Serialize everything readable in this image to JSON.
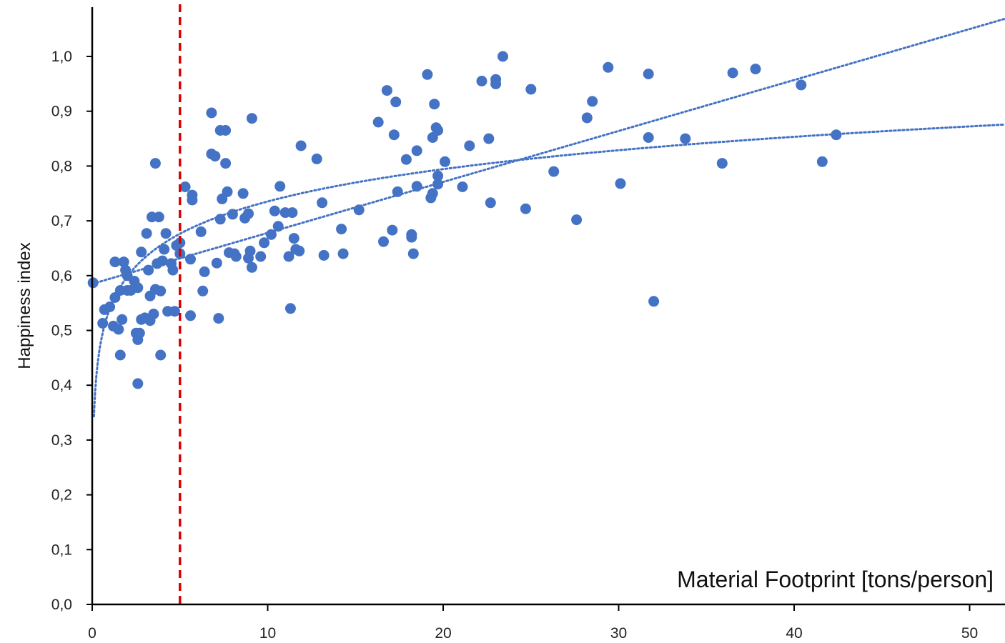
{
  "chart_data": {
    "type": "scatter",
    "title": "",
    "xlabel": "Material Footprint [tons/person]",
    "ylabel": "Happiness index",
    "xlim": [
      0,
      52
    ],
    "ylim": [
      0,
      1.05
    ],
    "x_ticks": [
      0,
      10,
      20,
      30,
      40,
      50
    ],
    "x_tick_labels": [
      "0",
      "10",
      "20",
      "30",
      "40",
      "50"
    ],
    "y_ticks": [
      0,
      0.1,
      0.2,
      0.3,
      0.4,
      0.5,
      0.6,
      0.7,
      0.8,
      0.9,
      1.0
    ],
    "y_tick_labels": [
      "0,0",
      "0,1",
      "0,2",
      "0,3",
      "0,4",
      "0,5",
      "0,6",
      "0,7",
      "0,8",
      "0,9",
      "1,0"
    ],
    "grid": false,
    "colors": {
      "points": "#4472c4",
      "trend": "#4472c4",
      "threshold": "#e00000",
      "axes": "#000000"
    },
    "threshold_line": {
      "x": 5,
      "style": "dashed"
    },
    "trendlines": [
      {
        "type": "linear",
        "style": "dotted",
        "slope": 0.0093,
        "intercept": 0.585
      },
      {
        "type": "logarithmic",
        "style": "dotted",
        "a": 0.0851,
        "b": 0.5394,
        "x_start": 0.1
      }
    ],
    "series": [
      {
        "points": [
          [
            0.05,
            0.587
          ],
          [
            0.7,
            0.538
          ],
          [
            0.6,
            0.513
          ],
          [
            1.0,
            0.543
          ],
          [
            1.2,
            0.508
          ],
          [
            1.3,
            0.625
          ],
          [
            1.3,
            0.56
          ],
          [
            1.5,
            0.502
          ],
          [
            1.6,
            0.573
          ],
          [
            1.7,
            0.52
          ],
          [
            1.6,
            0.455
          ],
          [
            1.8,
            0.625
          ],
          [
            1.9,
            0.61
          ],
          [
            2.0,
            0.6
          ],
          [
            2.0,
            0.573
          ],
          [
            2.2,
            0.573
          ],
          [
            2.4,
            0.59
          ],
          [
            2.5,
            0.495
          ],
          [
            2.6,
            0.578
          ],
          [
            2.6,
            0.483
          ],
          [
            2.6,
            0.403
          ],
          [
            2.7,
            0.495
          ],
          [
            2.8,
            0.643
          ],
          [
            2.8,
            0.52
          ],
          [
            3.0,
            0.523
          ],
          [
            3.1,
            0.677
          ],
          [
            3.2,
            0.61
          ],
          [
            3.3,
            0.518
          ],
          [
            3.3,
            0.563
          ],
          [
            3.4,
            0.707
          ],
          [
            3.5,
            0.53
          ],
          [
            3.6,
            0.575
          ],
          [
            3.6,
            0.805
          ],
          [
            3.7,
            0.622
          ],
          [
            3.8,
            0.707
          ],
          [
            3.9,
            0.572
          ],
          [
            3.9,
            0.455
          ],
          [
            4.0,
            0.627
          ],
          [
            4.1,
            0.648
          ],
          [
            4.2,
            0.677
          ],
          [
            4.3,
            0.535
          ],
          [
            4.6,
            0.61
          ],
          [
            4.5,
            0.622
          ],
          [
            4.7,
            0.535
          ],
          [
            4.8,
            0.655
          ],
          [
            5.0,
            0.66
          ],
          [
            5.0,
            0.64
          ],
          [
            5.3,
            0.762
          ],
          [
            5.6,
            0.527
          ],
          [
            5.6,
            0.63
          ],
          [
            5.7,
            0.747
          ],
          [
            5.7,
            0.738
          ],
          [
            6.2,
            0.68
          ],
          [
            6.3,
            0.572
          ],
          [
            6.4,
            0.607
          ],
          [
            6.8,
            0.822
          ],
          [
            6.8,
            0.897
          ],
          [
            7.0,
            0.818
          ],
          [
            7.1,
            0.623
          ],
          [
            7.2,
            0.522
          ],
          [
            7.3,
            0.865
          ],
          [
            7.3,
            0.703
          ],
          [
            7.4,
            0.74
          ],
          [
            7.6,
            0.865
          ],
          [
            7.6,
            0.805
          ],
          [
            7.7,
            0.753
          ],
          [
            7.8,
            0.642
          ],
          [
            8.0,
            0.712
          ],
          [
            8.1,
            0.64
          ],
          [
            8.2,
            0.635
          ],
          [
            8.6,
            0.75
          ],
          [
            8.7,
            0.705
          ],
          [
            8.9,
            0.713
          ],
          [
            8.9,
            0.632
          ],
          [
            9.0,
            0.645
          ],
          [
            9.1,
            0.615
          ],
          [
            9.1,
            0.887
          ],
          [
            9.6,
            0.635
          ],
          [
            9.8,
            0.66
          ],
          [
            10.2,
            0.675
          ],
          [
            10.4,
            0.718
          ],
          [
            10.6,
            0.69
          ],
          [
            10.7,
            0.763
          ],
          [
            11.0,
            0.715
          ],
          [
            11.2,
            0.635
          ],
          [
            11.3,
            0.54
          ],
          [
            11.4,
            0.715
          ],
          [
            11.5,
            0.668
          ],
          [
            11.6,
            0.648
          ],
          [
            11.8,
            0.645
          ],
          [
            11.9,
            0.837
          ],
          [
            12.8,
            0.813
          ],
          [
            13.1,
            0.733
          ],
          [
            13.2,
            0.637
          ],
          [
            14.2,
            0.685
          ],
          [
            14.3,
            0.64
          ],
          [
            15.2,
            0.72
          ],
          [
            16.3,
            0.88
          ],
          [
            16.6,
            0.662
          ],
          [
            16.8,
            0.938
          ],
          [
            17.1,
            0.683
          ],
          [
            17.2,
            0.857
          ],
          [
            17.3,
            0.917
          ],
          [
            17.4,
            0.753
          ],
          [
            17.9,
            0.812
          ],
          [
            18.2,
            0.675
          ],
          [
            18.2,
            0.67
          ],
          [
            18.3,
            0.64
          ],
          [
            18.5,
            0.828
          ],
          [
            18.5,
            0.763
          ],
          [
            19.1,
            0.967
          ],
          [
            19.3,
            0.742
          ],
          [
            19.4,
            0.852
          ],
          [
            19.4,
            0.75
          ],
          [
            19.5,
            0.913
          ],
          [
            19.6,
            0.87
          ],
          [
            19.7,
            0.865
          ],
          [
            19.7,
            0.782
          ],
          [
            19.7,
            0.767
          ],
          [
            20.1,
            0.808
          ],
          [
            21.1,
            0.762
          ],
          [
            21.5,
            0.837
          ],
          [
            22.2,
            0.955
          ],
          [
            22.6,
            0.85
          ],
          [
            22.7,
            0.733
          ],
          [
            23.0,
            0.958
          ],
          [
            23.0,
            0.95
          ],
          [
            23.4,
            1.0
          ],
          [
            24.7,
            0.722
          ],
          [
            25.0,
            0.94
          ],
          [
            26.3,
            0.79
          ],
          [
            27.6,
            0.702
          ],
          [
            28.2,
            0.888
          ],
          [
            28.5,
            0.918
          ],
          [
            29.4,
            0.98
          ],
          [
            30.1,
            0.768
          ],
          [
            31.7,
            0.968
          ],
          [
            31.7,
            0.852
          ],
          [
            32.0,
            0.553
          ],
          [
            33.8,
            0.85
          ],
          [
            35.9,
            0.805
          ],
          [
            36.5,
            0.97
          ],
          [
            37.8,
            0.977
          ],
          [
            40.4,
            0.948
          ],
          [
            41.6,
            0.808
          ],
          [
            42.4,
            0.857
          ]
        ]
      }
    ]
  }
}
